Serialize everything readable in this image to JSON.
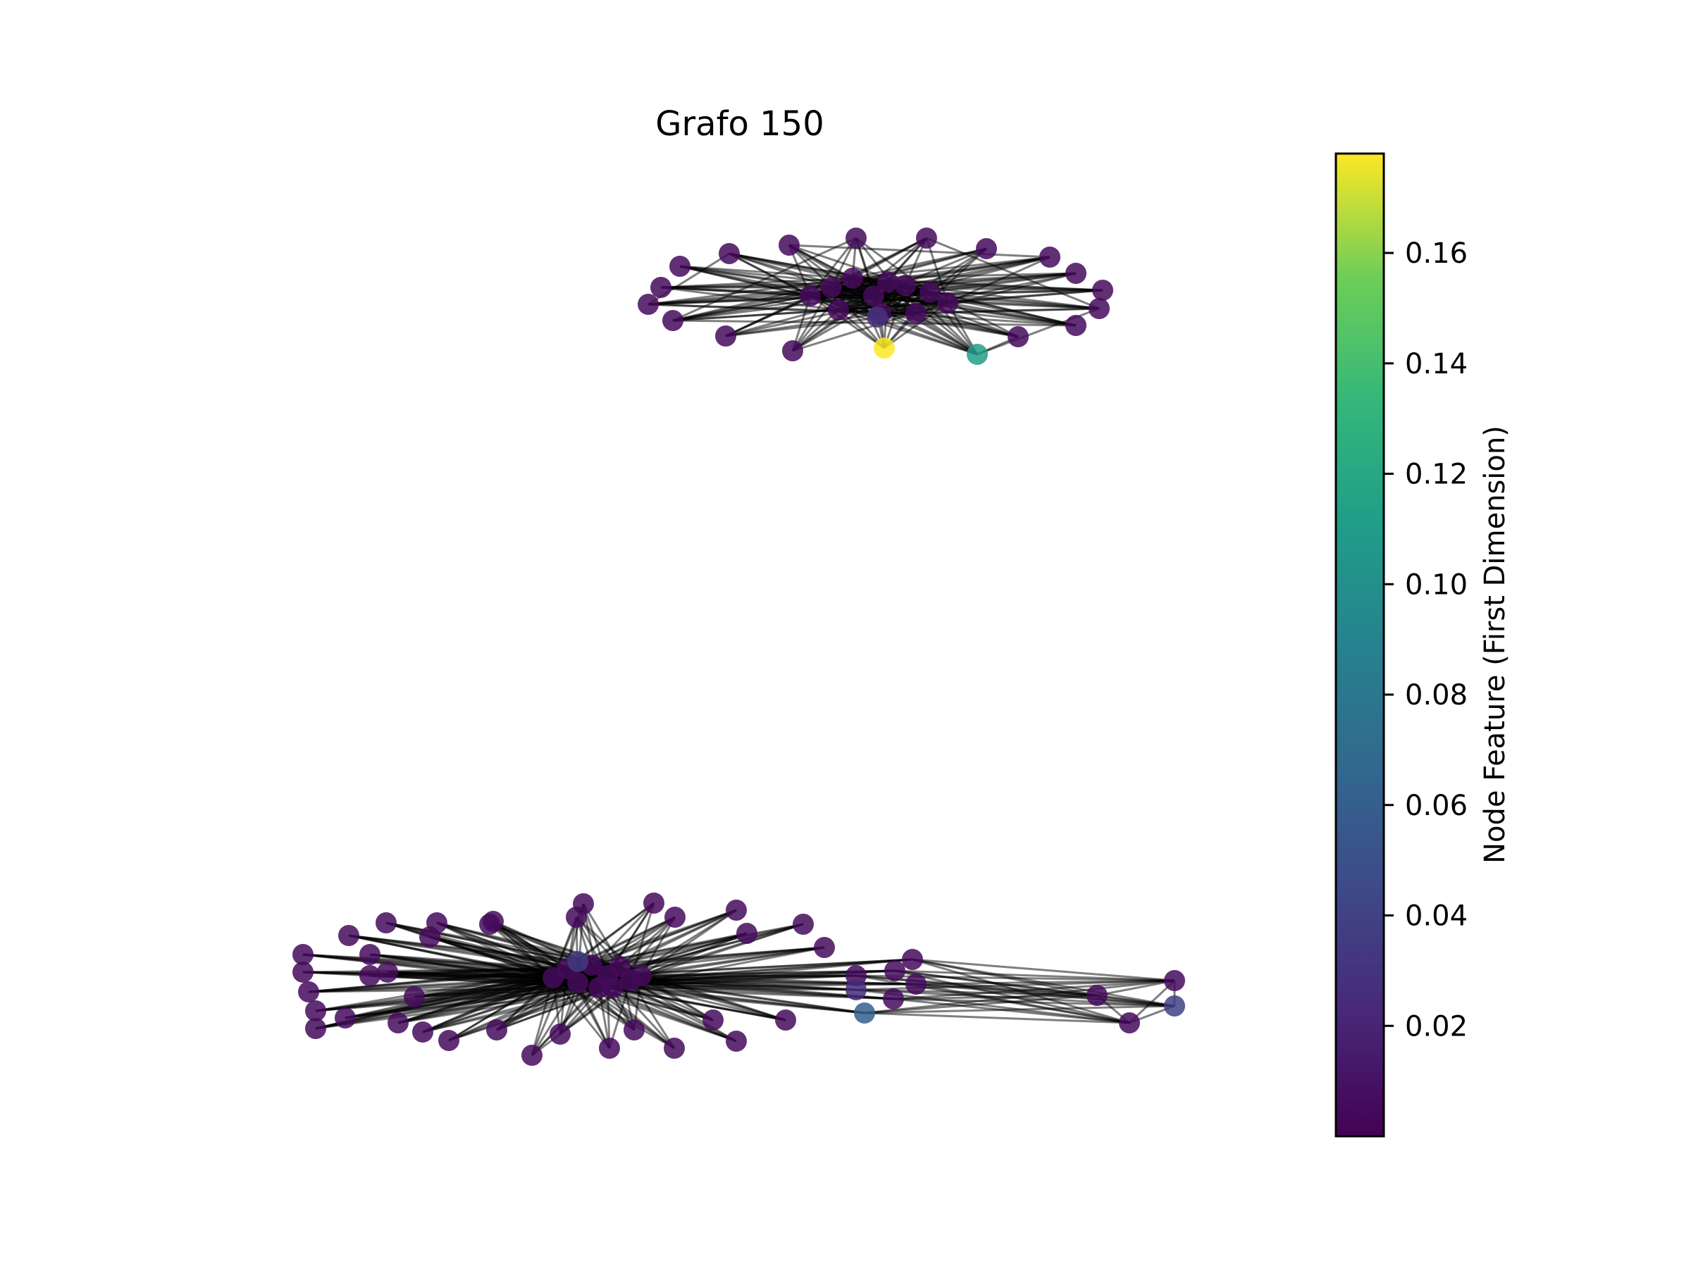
{
  "title": "Grafo 150",
  "colorbar": {
    "label": "Node Feature (First Dimension)",
    "colormap": "viridis",
    "vmin": 0.0,
    "vmax": 0.178,
    "ticks": [
      0.02,
      0.04,
      0.06,
      0.08,
      0.1,
      0.12,
      0.14,
      0.16
    ],
    "tick_labels": [
      "0.02",
      "0.04",
      "0.06",
      "0.08",
      "0.10",
      "0.12",
      "0.14",
      "0.16"
    ]
  },
  "colors": {
    "edge": "#000000",
    "node_stroke": "#3a1550"
  },
  "graph": {
    "components": 2
  }
}
